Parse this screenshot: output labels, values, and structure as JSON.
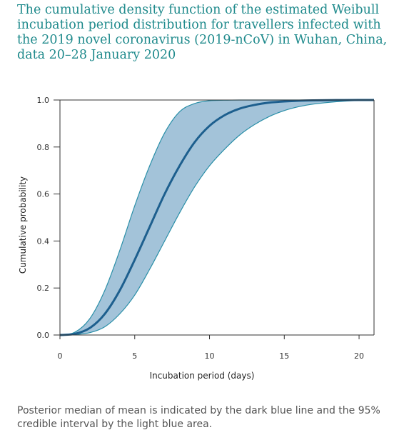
{
  "title": "The cumulative density function of the estimated Weibull incubation period distribution for travellers infected with the 2019 novel coronavirus (2019-nCoV) in Wuhan, China, data 20–28 January 2020",
  "caption": "Posterior median of mean is indicated by the dark blue line and the 95% credible interval by the light blue area.",
  "colors": {
    "title": "#1f8a8c",
    "band_fill": "#a3c3d9",
    "band_edge": "#2a8fa8",
    "median_line": "#1d5f8e",
    "axis": "#333333"
  },
  "chart_data": {
    "type": "line",
    "xlabel": "Incubation period (days)",
    "ylabel": "Cumulative probability",
    "xlim": [
      0,
      21
    ],
    "ylim": [
      0,
      1
    ],
    "x_ticks": [
      0,
      5,
      10,
      15,
      20
    ],
    "y_ticks": [
      0.0,
      0.2,
      0.4,
      0.6,
      0.8,
      1.0
    ],
    "x_tick_labels": [
      "0",
      "5",
      "10",
      "15",
      "20"
    ],
    "y_tick_labels": [
      "0.0",
      "0.2",
      "0.4",
      "0.6",
      "0.8",
      "1.0"
    ],
    "grid": false,
    "x": [
      0,
      1,
      2,
      3,
      4,
      5,
      6,
      7,
      8,
      9,
      10,
      11,
      12,
      13,
      14,
      15,
      16,
      17,
      18,
      19,
      20,
      21
    ],
    "series": [
      {
        "role": "median",
        "values": [
          0.0,
          0.005,
          0.03,
          0.09,
          0.19,
          0.32,
          0.46,
          0.6,
          0.72,
          0.82,
          0.89,
          0.935,
          0.963,
          0.979,
          0.989,
          0.994,
          0.997,
          0.9985,
          0.9993,
          0.9997,
          0.9999,
          1.0
        ]
      },
      {
        "role": "ci_upper",
        "values": [
          0.0,
          0.012,
          0.07,
          0.19,
          0.36,
          0.55,
          0.72,
          0.86,
          0.95,
          0.985,
          0.997,
          0.999,
          1.0,
          1.0,
          1.0,
          1.0,
          1.0,
          1.0,
          1.0,
          1.0,
          1.0,
          1.0
        ]
      },
      {
        "role": "ci_lower",
        "values": [
          0.0,
          0.002,
          0.01,
          0.035,
          0.09,
          0.17,
          0.28,
          0.4,
          0.52,
          0.63,
          0.72,
          0.79,
          0.85,
          0.895,
          0.93,
          0.955,
          0.972,
          0.983,
          0.99,
          0.995,
          0.998,
          0.999
        ]
      }
    ]
  }
}
